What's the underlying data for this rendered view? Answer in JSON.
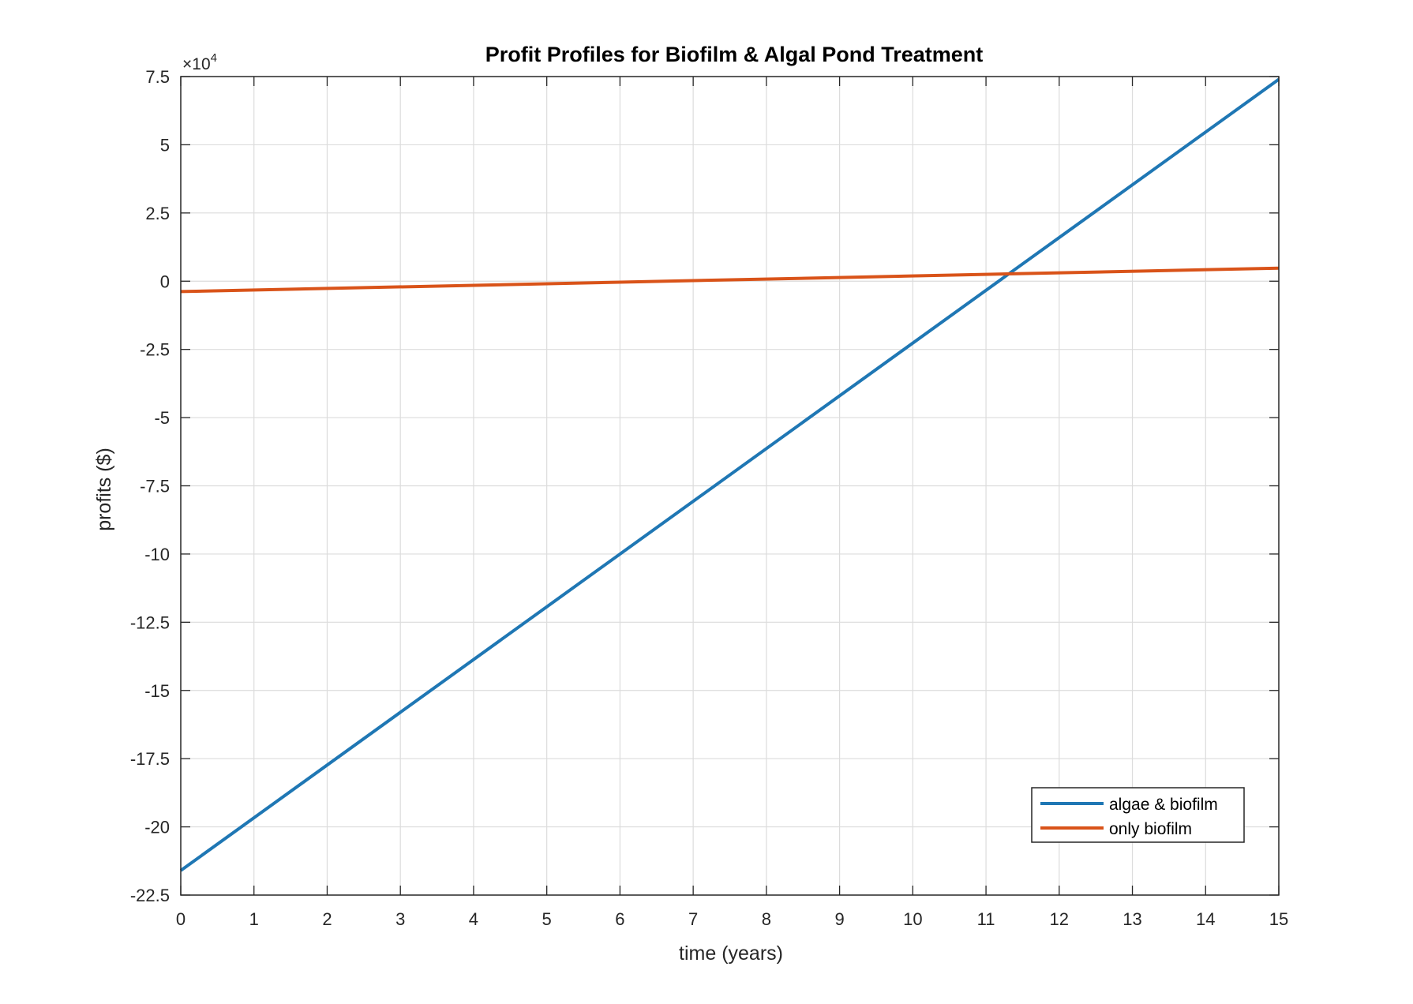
{
  "chart_data": {
    "type": "line",
    "title": "Profit Profiles for Biofilm & Algal Pond Treatment",
    "xlabel": "time (years)",
    "ylabel": "profits ($)",
    "y_multiplier_label": "×10",
    "y_multiplier_exponent": "4",
    "xlim": [
      0,
      15
    ],
    "ylim": [
      -22.5,
      7.5
    ],
    "x_ticks": [
      0,
      1,
      2,
      3,
      4,
      5,
      6,
      7,
      8,
      9,
      10,
      11,
      12,
      13,
      14,
      15
    ],
    "x_tick_labels": [
      "0",
      "1",
      "2",
      "3",
      "4",
      "5",
      "6",
      "7",
      "8",
      "9",
      "10",
      "11",
      "12",
      "13",
      "14",
      "15"
    ],
    "y_ticks": [
      7.5,
      5,
      2.5,
      0,
      -2.5,
      -5,
      -7.5,
      -10,
      -12.5,
      -15,
      -17.5,
      -20,
      -22.5
    ],
    "y_tick_labels": [
      "7.5",
      "5",
      "2.5",
      "0",
      "-2.5",
      "-5",
      "-7.5",
      "-10",
      "-12.5",
      "-15",
      "-17.5",
      "-20",
      "-22.5"
    ],
    "grid": true,
    "legend_position": "bottom-right",
    "series": [
      {
        "name": "algae & biofilm",
        "color": "#1f77b4",
        "x": [
          0,
          15
        ],
        "y": [
          -21.6,
          7.4
        ]
      },
      {
        "name": "only biofilm",
        "color": "#d95319",
        "x": [
          0,
          15
        ],
        "y": [
          -0.38,
          0.48
        ]
      }
    ]
  }
}
